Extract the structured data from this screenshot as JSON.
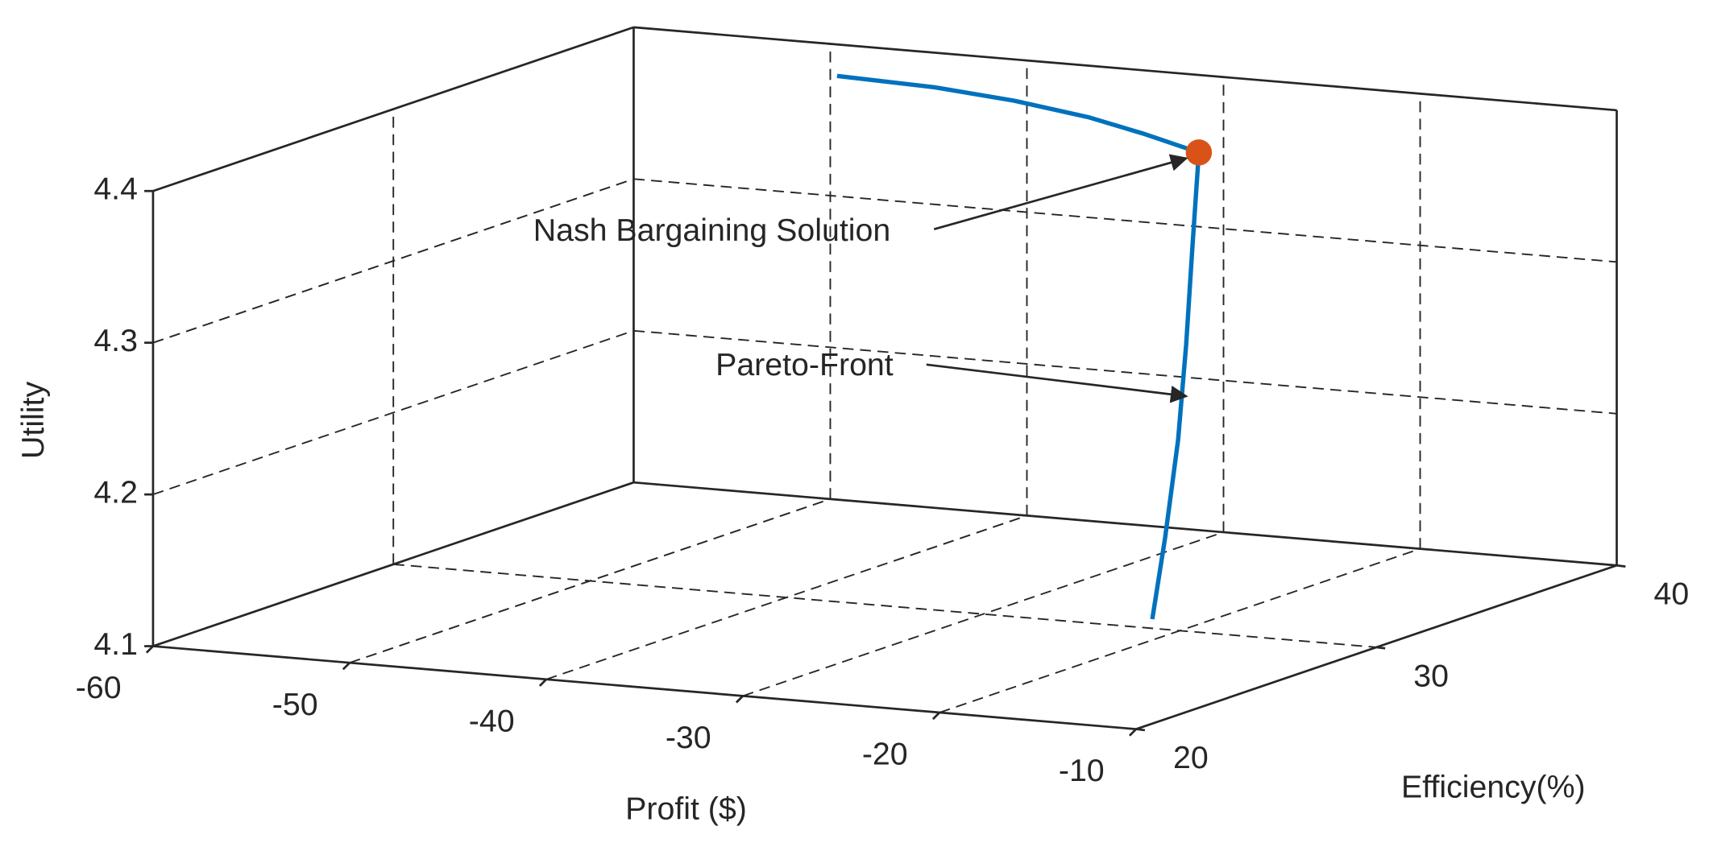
{
  "chart_data": {
    "type": "line3d",
    "xlabel": "Profit ($)",
    "ylabel": "Efficiency(%)",
    "zlabel": "Utility",
    "xlim": [
      -60,
      -10
    ],
    "ylim": [
      20,
      40
    ],
    "zlim": [
      4.1,
      4.4
    ],
    "xticks": [
      -60,
      -50,
      -40,
      -30,
      -20,
      -10
    ],
    "yticks": [
      20,
      30,
      40
    ],
    "zticks": [
      4.1,
      4.2,
      4.3,
      4.4
    ],
    "grid": true,
    "series": [
      {
        "style": "line",
        "color": "#0072bd",
        "x": [
          -47.7,
          -42,
          -37,
          -32,
          -28,
          -23.8,
          -23.4,
          -23.1,
          -22.9,
          -22.7,
          -22.5
        ],
        "y": [
          38.4,
          37.8,
          37.0,
          36.0,
          35.0,
          33.9,
          33.3,
          32.8,
          32.3,
          31.6,
          30.9
        ],
        "z": [
          4.39,
          4.392,
          4.393,
          4.393,
          4.392,
          4.39,
          4.33,
          4.27,
          4.21,
          4.15,
          4.1
        ]
      },
      {
        "style": "marker",
        "color": "#d95319",
        "x": [
          -23.8
        ],
        "y": [
          33.9
        ],
        "z": [
          4.39
        ]
      }
    ],
    "annotations": [
      "Nash Bargaining Solution",
      "Pareto-Front"
    ]
  }
}
